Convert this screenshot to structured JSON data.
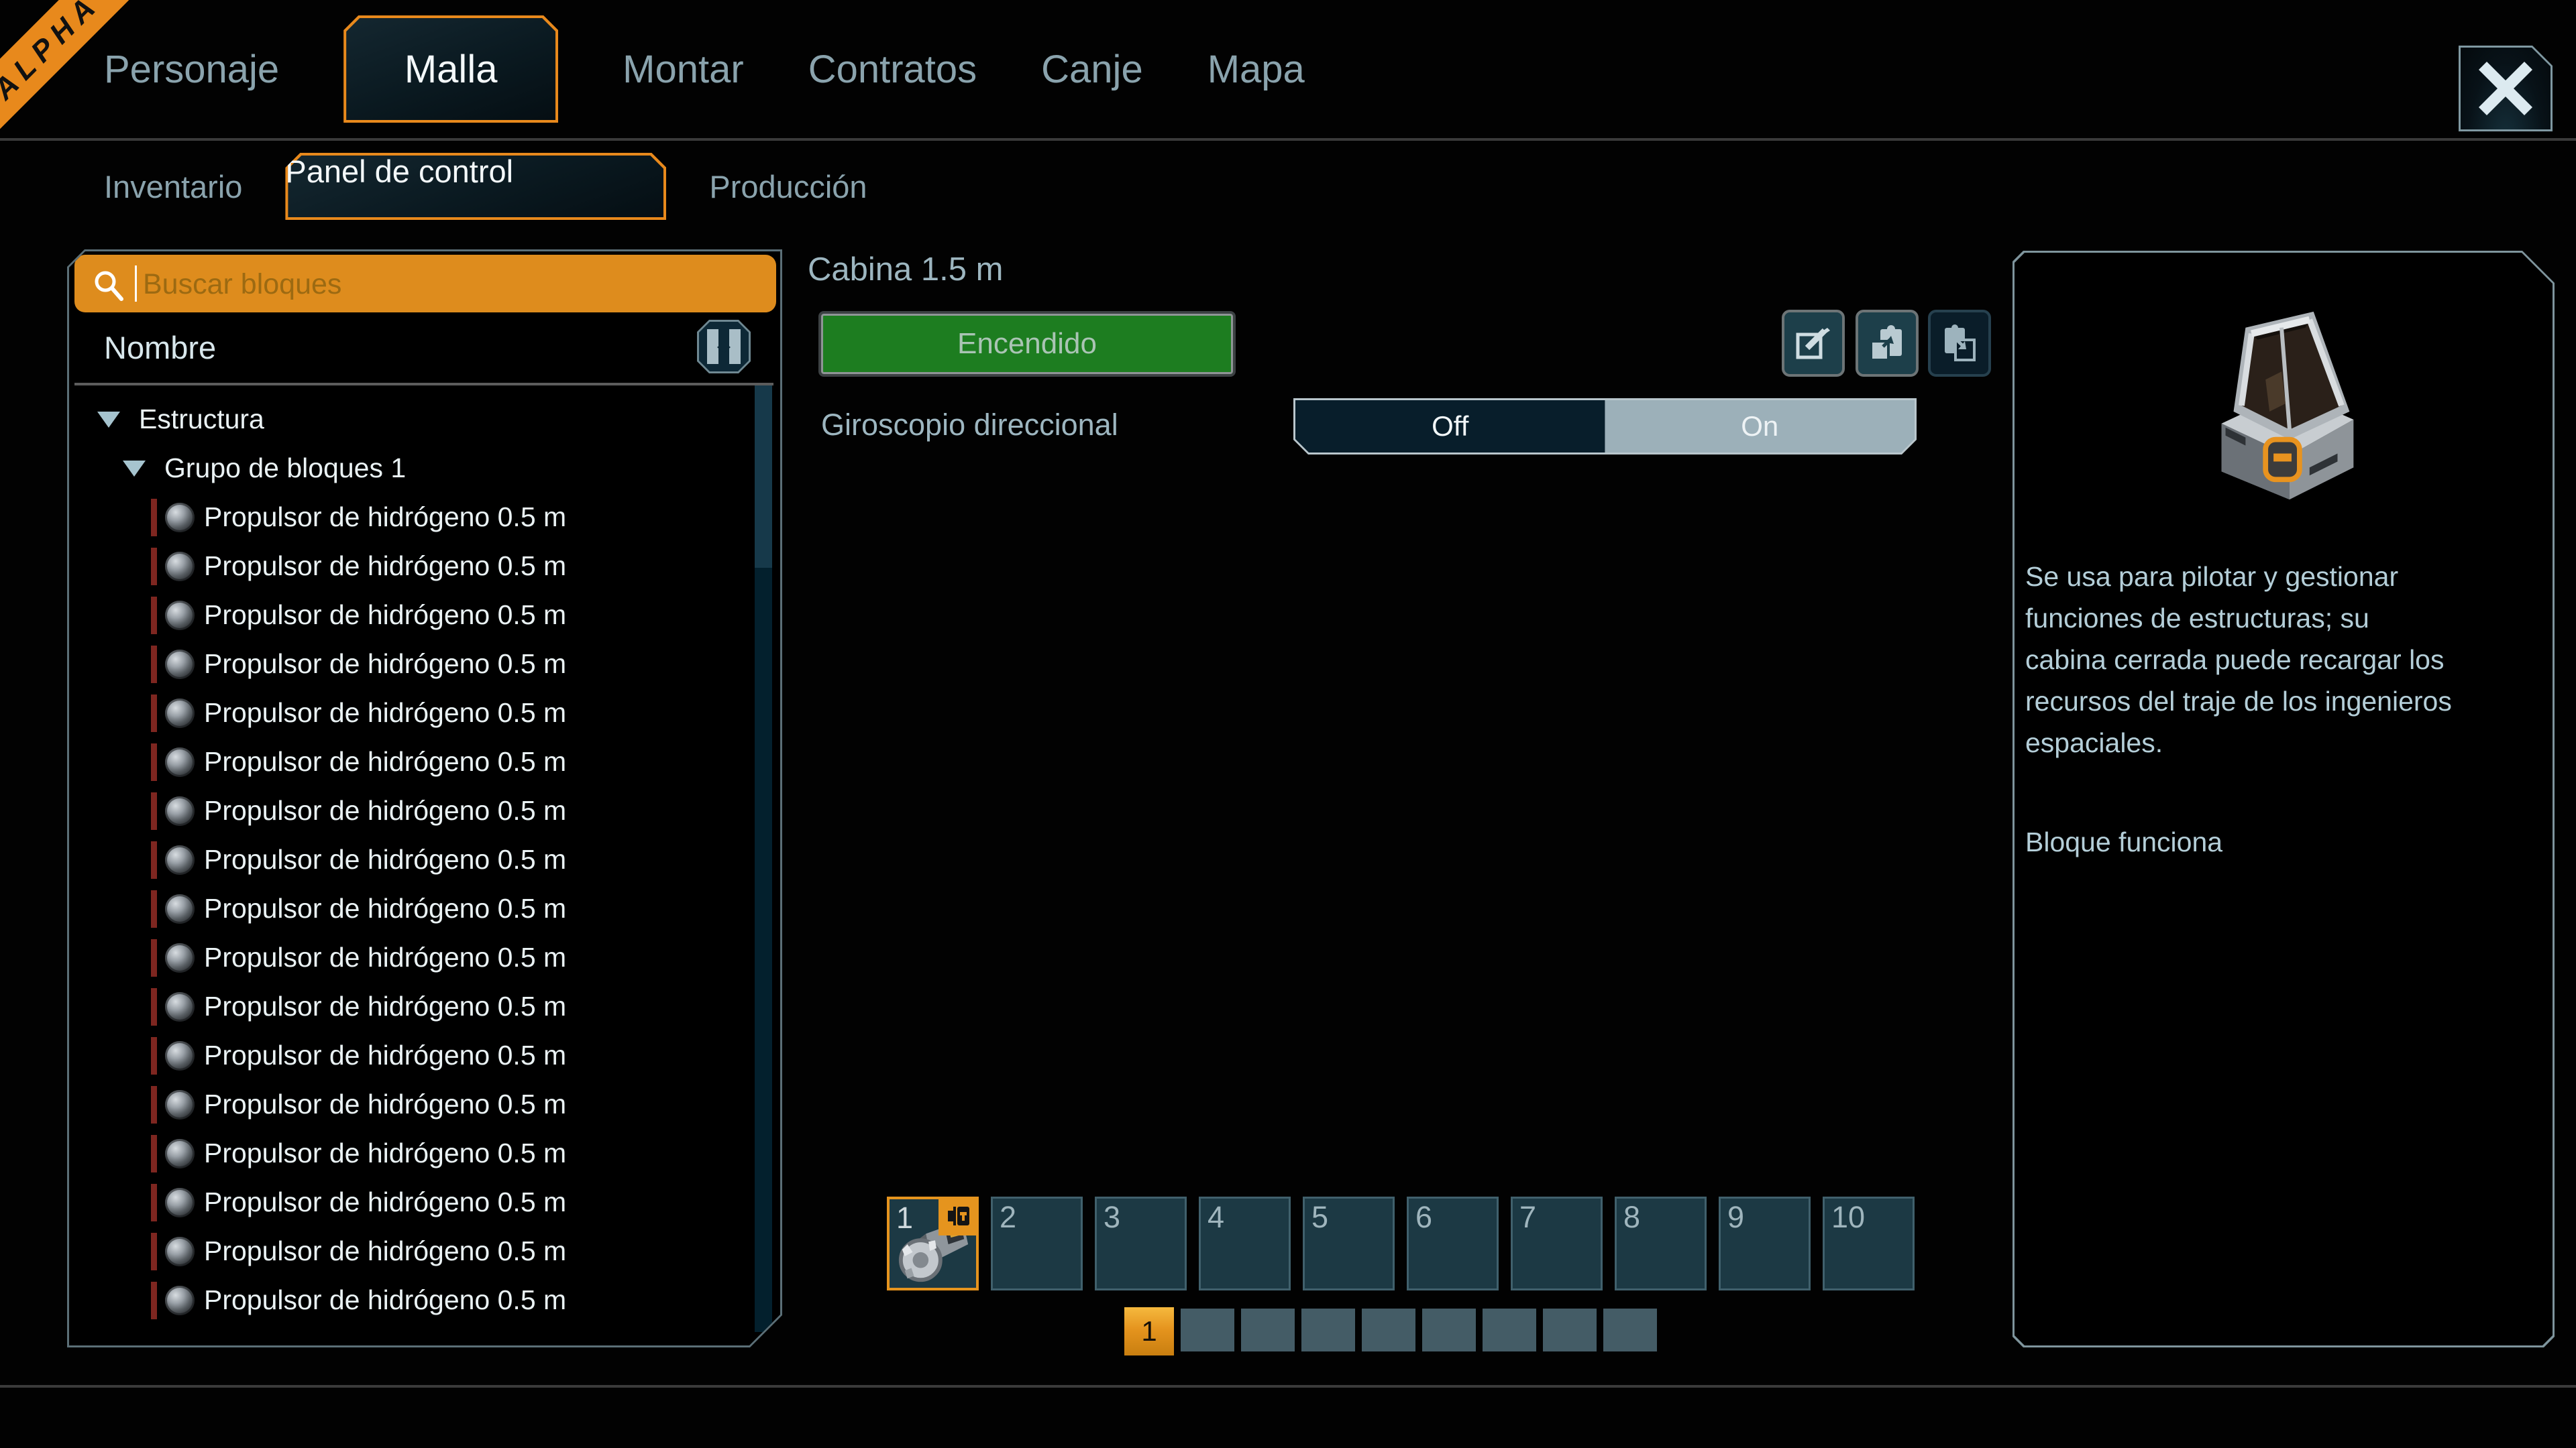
{
  "ribbon": {
    "label": "ALPHA"
  },
  "nav": {
    "tabs": [
      {
        "label": "Personaje"
      },
      {
        "label": "Malla",
        "selected": true
      },
      {
        "label": "Montar"
      },
      {
        "label": "Contratos"
      },
      {
        "label": "Canje"
      },
      {
        "label": "Mapa"
      }
    ]
  },
  "subnav": {
    "tabs": [
      {
        "label": "Inventario"
      },
      {
        "label": "Panel de control",
        "selected": true
      },
      {
        "label": "Producción"
      }
    ]
  },
  "block_list": {
    "search_placeholder": "Buscar bloques",
    "column_header": "Nombre",
    "tree": {
      "root_label": "Estructura",
      "group_label": "Grupo de bloques 1",
      "items": [
        "Propulsor de hidrógeno 0.5 m",
        "Propulsor de hidrógeno 0.5 m",
        "Propulsor de hidrógeno 0.5 m",
        "Propulsor de hidrógeno 0.5 m",
        "Propulsor de hidrógeno 0.5 m",
        "Propulsor de hidrógeno 0.5 m",
        "Propulsor de hidrógeno 0.5 m",
        "Propulsor de hidrógeno 0.5 m",
        "Propulsor de hidrógeno 0.5 m",
        "Propulsor de hidrógeno 0.5 m",
        "Propulsor de hidrógeno 0.5 m",
        "Propulsor de hidrógeno 0.5 m",
        "Propulsor de hidrógeno 0.5 m",
        "Propulsor de hidrógeno 0.5 m",
        "Propulsor de hidrógeno 0.5 m",
        "Propulsor de hidrógeno 0.5 m",
        "Propulsor de hidrógeno 0.5 m"
      ]
    }
  },
  "detail": {
    "title": "Cabina 1.5 m",
    "power_button_label": "Encendido",
    "gyro_label": "Giroscopio direccional",
    "toggle": {
      "off_label": "Off",
      "on_label": "On",
      "state": "On"
    }
  },
  "hotbar": {
    "active_slot_number": "1",
    "slot_numbers": [
      "2",
      "3",
      "4",
      "5",
      "6",
      "7",
      "8",
      "9",
      "10"
    ],
    "pager": {
      "current_page": "1",
      "other_pages": [
        "",
        "",
        "",
        "",
        "",
        "",
        "",
        ""
      ]
    }
  },
  "info_panel": {
    "description": "Se usa para pilotar y gestionar funciones de estructuras; su cabina cerrada puede recargar los recursos del traje de los ingenieros espaciales.",
    "status": "Bloque funciona"
  },
  "colors": {
    "accent_orange": "#e5941e",
    "power_green": "#1d7d20",
    "alert_red": "#7e2620"
  }
}
